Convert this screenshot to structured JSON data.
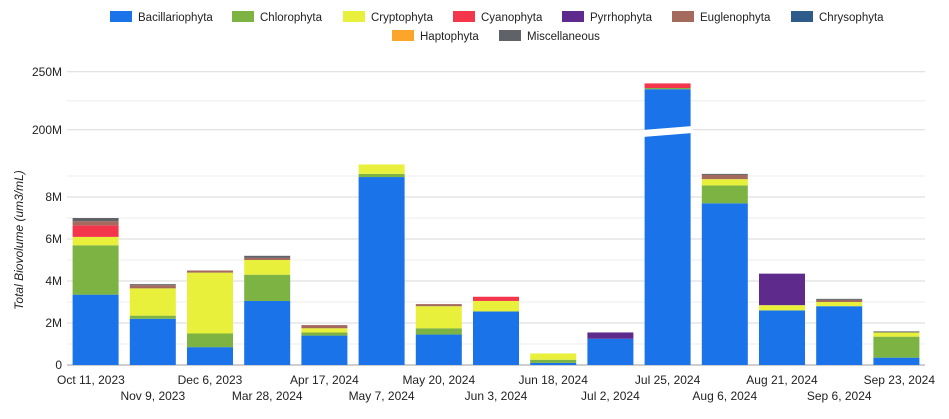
{
  "chart_data": {
    "type": "bar",
    "stacked": true,
    "title": "",
    "xlabel": "",
    "ylabel": "Total Biovolume (um3/mL)",
    "scale": "broken",
    "lower_axis": {
      "range": [
        0,
        10000000
      ],
      "ticks": [
        0,
        2000000,
        4000000,
        6000000,
        8000000
      ],
      "tick_labels": [
        "0",
        "2M",
        "4M",
        "6M",
        "8M"
      ]
    },
    "upper_axis": {
      "range": [
        180000000,
        250000000
      ],
      "ticks": [
        200000000,
        250000000
      ],
      "tick_labels": [
        "200M",
        "250M"
      ]
    },
    "grid": true,
    "legend_position": "top",
    "categories": [
      "Oct 11, 2023",
      "Nov 9, 2023",
      "Dec 6, 2023",
      "Mar 28, 2024",
      "Apr 17, 2024",
      "May 7, 2024",
      "May 20, 2024",
      "Jun 3, 2024",
      "Jun 18, 2024",
      "Jul 2, 2024",
      "Jul 25, 2024",
      "Aug 6, 2024",
      "Aug 21, 2024",
      "Sep 6, 2024",
      "Sep 23, 2024"
    ],
    "series": [
      {
        "name": "Bacillariophyta",
        "color": "#1a73e8",
        "values": [
          3350000,
          2200000,
          850000,
          3050000,
          1400000,
          8950000,
          1450000,
          2550000,
          100000,
          1250000,
          235000000,
          7700000,
          2600000,
          2800000,
          350000
        ]
      },
      {
        "name": "Chlorophyta",
        "color": "#7cb342",
        "values": [
          2350000,
          150000,
          650000,
          1250000,
          150000,
          150000,
          300000,
          0,
          150000,
          0,
          1000000,
          850000,
          0,
          0,
          1000000
        ]
      },
      {
        "name": "Cryptophyta",
        "color": "#e8f03c",
        "values": [
          400000,
          1300000,
          2900000,
          700000,
          200000,
          450000,
          1050000,
          500000,
          300000,
          0,
          0,
          300000,
          250000,
          200000,
          200000
        ]
      },
      {
        "name": "Cyanophyta",
        "color": "#f4364c",
        "values": [
          550000,
          0,
          0,
          0,
          0,
          0,
          0,
          200000,
          0,
          0,
          4000000,
          0,
          0,
          0,
          0
        ]
      },
      {
        "name": "Pyrrhophyta",
        "color": "#5e2b8c",
        "values": [
          0,
          0,
          0,
          0,
          0,
          0,
          0,
          0,
          0,
          300000,
          0,
          0,
          1500000,
          0,
          0
        ]
      },
      {
        "name": "Euglenophyta",
        "color": "#a46a5e",
        "values": [
          200000,
          150000,
          100000,
          100000,
          150000,
          0,
          100000,
          0,
          0,
          0,
          0,
          200000,
          0,
          100000,
          0
        ]
      },
      {
        "name": "Chrysophyta",
        "color": "#2f5b8a",
        "values": [
          0,
          0,
          0,
          0,
          0,
          0,
          0,
          0,
          0,
          0,
          0,
          0,
          0,
          0,
          0
        ]
      },
      {
        "name": "Haptophyta",
        "color": "#fba52b",
        "values": [
          0,
          0,
          0,
          0,
          0,
          0,
          0,
          0,
          0,
          0,
          0,
          0,
          0,
          0,
          0
        ]
      },
      {
        "name": "Miscellaneous",
        "color": "#5f6368",
        "values": [
          150000,
          50000,
          0,
          100000,
          0,
          0,
          0,
          0,
          0,
          0,
          0,
          50000,
          0,
          50000,
          50000
        ]
      }
    ]
  }
}
